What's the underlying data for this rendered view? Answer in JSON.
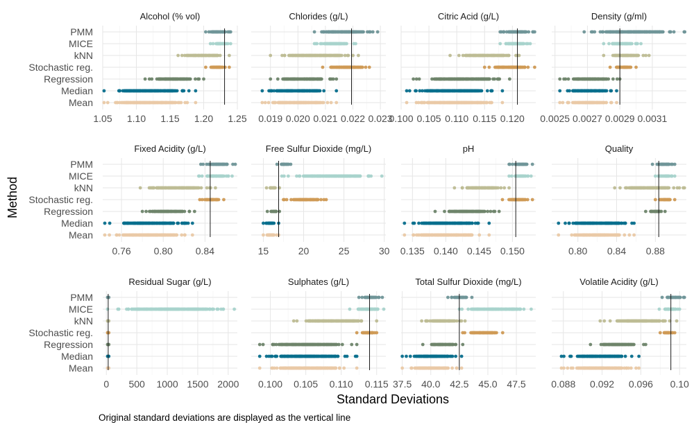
{
  "chart_data": {
    "type": "scatter",
    "ylabel": "Method",
    "xlabel": "Standard Deviations",
    "caption": "Original standard deviations are displayed as the vertical line",
    "methods": [
      "PMM",
      "MICE",
      "kNN",
      "Stochastic reg.",
      "Regression",
      "Median",
      "Mean"
    ],
    "method_colors": {
      "PMM": "#6f9598",
      "MICE": "#a8d3cc",
      "kNN": "#bdbc94",
      "Stochastic reg.": "#cf9a55",
      "Regression": "#6e846a",
      "Median": "#076e8c",
      "Mean": "#eac9a6"
    },
    "grid": true,
    "facets": [
      {
        "title": "Alcohol (% vol)",
        "xlim": [
          1.05,
          1.25
        ],
        "ticks": [
          1.05,
          1.1,
          1.15,
          1.2,
          1.25
        ],
        "tick_labels": [
          "1.05",
          "1.10",
          "1.15",
          "1.20",
          "1.25"
        ],
        "original_sd": 1.231,
        "ranges": {
          "PMM": [
            1.203,
            1.24
          ],
          "MICE": [
            1.21,
            1.24
          ],
          "kNN": [
            1.162,
            1.238
          ],
          "Stochastic reg.": [
            1.203,
            1.238
          ],
          "Regression": [
            1.113,
            1.2
          ],
          "Median": [
            1.052,
            1.188
          ],
          "Mean": [
            1.052,
            1.188
          ]
        }
      },
      {
        "title": "Chlorides (g/L)",
        "xlim": [
          0.0183,
          0.0232
        ],
        "ticks": [
          0.019,
          0.02,
          0.021,
          0.022,
          0.023
        ],
        "tick_labels": [
          "0.019",
          "0.020",
          "0.021",
          "0.022",
          "0.023"
        ],
        "original_sd": 0.02195,
        "ranges": {
          "PMM": [
            0.0206,
            0.0229
          ],
          "MICE": [
            0.0206,
            0.0221
          ],
          "kNN": [
            0.019,
            0.0222
          ],
          "Stochastic reg.": [
            0.0209,
            0.0226
          ],
          "Regression": [
            0.019,
            0.0214
          ],
          "Median": [
            0.0187,
            0.0214
          ],
          "Mean": [
            0.0187,
            0.0214
          ]
        }
      },
      {
        "title": "Citric Acid (g/L)",
        "xlim": [
          0.1,
          0.1242
        ],
        "ticks": [
          0.1,
          0.105,
          0.11,
          0.115,
          0.12
        ],
        "tick_labels": [
          "0.100",
          "0.105",
          "0.110",
          "0.115",
          "0.120"
        ],
        "original_sd": 0.1209,
        "ranges": {
          "PMM": [
            0.1178,
            0.124
          ],
          "MICE": [
            0.1178,
            0.1232
          ],
          "kNN": [
            0.1088,
            0.1212
          ],
          "Stochastic reg.": [
            0.115,
            0.124
          ],
          "Regression": [
            0.1022,
            0.1195
          ],
          "Median": [
            0.101,
            0.1182
          ],
          "Mean": [
            0.101,
            0.1182
          ]
        }
      },
      {
        "title": "Density (g/ml)",
        "xlim": [
          0.00248,
          0.00331
        ],
        "ticks": [
          0.0025,
          0.0027,
          0.0029,
          0.0031
        ],
        "tick_labels": [
          "0.0025",
          "0.0027",
          "0.0029",
          "0.0031"
        ],
        "original_sd": 0.0029,
        "ranges": {
          "PMM": [
            0.00268,
            0.0033
          ],
          "MICE": [
            0.0028,
            0.00303
          ],
          "kNN": [
            0.0028,
            0.00308
          ],
          "Stochastic reg.": [
            0.00284,
            0.003
          ],
          "Regression": [
            0.00253,
            0.0029
          ],
          "Median": [
            0.00253,
            0.00288
          ],
          "Mean": [
            0.00253,
            0.00288
          ]
        }
      },
      {
        "title": "Fixed Acidity (g/L)",
        "xlim": [
          0.742,
          0.871
        ],
        "ticks": [
          0.76,
          0.8,
          0.84
        ],
        "tick_labels": [
          "0.76",
          "0.80",
          "0.84"
        ],
        "original_sd": 0.845,
        "ranges": {
          "PMM": [
            0.836,
            0.869
          ],
          "MICE": [
            0.834,
            0.866
          ],
          "kNN": [
            0.778,
            0.85
          ],
          "Stochastic reg.": [
            0.835,
            0.858
          ],
          "Regression": [
            0.78,
            0.83
          ],
          "Median": [
            0.744,
            0.828
          ],
          "Mean": [
            0.744,
            0.828
          ]
        }
      },
      {
        "title": "Free Sulfur Dioxide (mg/L)",
        "xlim": [
          13.5,
          30.2
        ],
        "ticks": [
          15,
          20,
          25,
          30
        ],
        "tick_labels": [
          "15",
          "20",
          "25",
          "30"
        ],
        "original_sd": 16.9,
        "ranges": {
          "PMM": [
            16.7,
            18.4
          ],
          "MICE": [
            17.3,
            29.7
          ],
          "kNN": [
            15.4,
            17.0
          ],
          "Stochastic reg.": [
            17.5,
            22.8
          ],
          "Regression": [
            15.5,
            17.0
          ],
          "Median": [
            15.0,
            16.9
          ],
          "Mean": [
            15.0,
            16.9
          ]
        }
      },
      {
        "title": "pH",
        "xlim": [
          0.1333,
          0.1535
        ],
        "ticks": [
          0.135,
          0.14,
          0.145,
          0.15
        ],
        "tick_labels": [
          "0.135",
          "0.140",
          "0.145",
          "0.150"
        ],
        "original_sd": 0.1505,
        "ranges": {
          "PMM": [
            0.1495,
            0.153
          ],
          "MICE": [
            0.1495,
            0.1528
          ],
          "kNN": [
            0.1413,
            0.1495
          ],
          "Stochastic reg.": [
            0.1485,
            0.153
          ],
          "Regression": [
            0.1384,
            0.148
          ],
          "Median": [
            0.1338,
            0.1465
          ],
          "Mean": [
            0.1338,
            0.1465
          ]
        }
      },
      {
        "title": "Quality",
        "xlim": [
          0.773,
          0.912
        ],
        "ticks": [
          0.8,
          0.84,
          0.88
        ],
        "tick_labels": [
          "0.80",
          "0.84",
          "0.88"
        ],
        "original_sd": 0.8835,
        "ranges": {
          "PMM": [
            0.877,
            0.9
          ],
          "MICE": [
            0.88,
            0.9
          ],
          "kNN": [
            0.838,
            0.91
          ],
          "Stochastic reg.": [
            0.88,
            0.9
          ],
          "Regression": [
            0.87,
            0.89
          ],
          "Median": [
            0.78,
            0.858
          ],
          "Mean": [
            0.78,
            0.858
          ]
        }
      },
      {
        "title": "Residual Sugar (g/L)",
        "xlim": [
          -60,
          2150
        ],
        "ticks": [
          0,
          500,
          1000,
          1500,
          2000
        ],
        "tick_labels": [
          "0",
          "500",
          "1000",
          "1500",
          "2000"
        ],
        "original_sd": 30,
        "ranges": {
          "PMM": [
            20,
            40
          ],
          "MICE": [
            20,
            2100
          ],
          "kNN": [
            20,
            40
          ],
          "Stochastic reg.": [
            20,
            40
          ],
          "Regression": [
            20,
            40
          ],
          "Median": [
            20,
            40
          ],
          "Mean": [
            20,
            40
          ]
        }
      },
      {
        "title": "Sulphates (g/L)",
        "xlim": [
          0.0973,
          0.1163
        ],
        "ticks": [
          0.1,
          0.105,
          0.11,
          0.115
        ],
        "tick_labels": [
          "0.100",
          "0.105",
          "0.110",
          "0.115"
        ],
        "original_sd": 0.114,
        "ranges": {
          "PMM": [
            0.1125,
            0.1158
          ],
          "MICE": [
            0.1112,
            0.116
          ],
          "kNN": [
            0.1033,
            0.115
          ],
          "Stochastic reg.": [
            0.1122,
            0.115
          ],
          "Regression": [
            0.0985,
            0.1122
          ],
          "Median": [
            0.0985,
            0.1122
          ],
          "Mean": [
            0.0985,
            0.1122
          ]
        }
      },
      {
        "title": "Total Sulfur Dioxide (mg/L)",
        "xlim": [
          37.4,
          49.2
        ],
        "ticks": [
          37.5,
          40.0,
          42.5,
          45.0,
          47.5
        ],
        "tick_labels": [
          "37.5",
          "40.0",
          "42.5",
          "45.0",
          "47.5"
        ],
        "original_sd": 42.5,
        "ranges": {
          "PMM": [
            41.5,
            43.6
          ],
          "MICE": [
            42.5,
            48.8
          ],
          "kNN": [
            39.2,
            43.0
          ],
          "Stochastic reg.": [
            42.8,
            46.3
          ],
          "Regression": [
            39.3,
            42.8
          ],
          "Median": [
            37.5,
            42.7
          ],
          "Mean": [
            37.5,
            42.7
          ]
        }
      },
      {
        "title": "Volatile Acidity (g/L)",
        "xlim": [
          0.0868,
          0.1007
        ],
        "ticks": [
          0.088,
          0.092,
          0.096,
          0.1
        ],
        "tick_labels": [
          "0.088",
          "0.092",
          "0.096",
          "0.10"
        ],
        "original_sd": 0.0991,
        "ranges": {
          "PMM": [
            0.0982,
            0.1005
          ],
          "MICE": [
            0.0979,
            0.1
          ],
          "kNN": [
            0.0918,
            0.0997
          ],
          "Stochastic reg.": [
            0.098,
            0.0995
          ],
          "Regression": [
            0.0908,
            0.0965
          ],
          "Median": [
            0.0878,
            0.0958
          ],
          "Mean": [
            0.0878,
            0.0958
          ]
        }
      }
    ]
  }
}
